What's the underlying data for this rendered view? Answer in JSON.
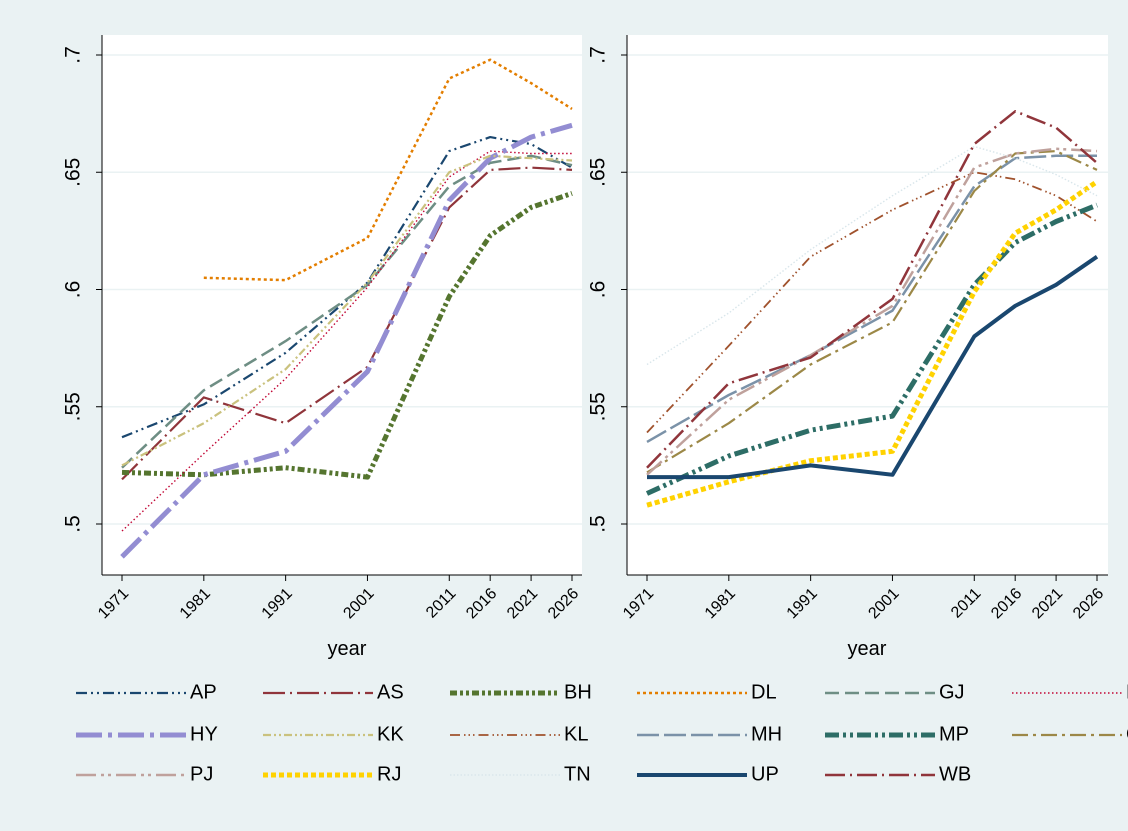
{
  "chart_data": [
    {
      "type": "line",
      "panel": "left",
      "xlabel": "year",
      "ylabel": "",
      "x": [
        1971,
        1981,
        1991,
        2001,
        2011,
        2016,
        2021,
        2026
      ],
      "x_ticks": [
        "1971",
        "1981",
        "1991",
        "2001",
        "2011",
        "2016",
        "2021",
        "2026"
      ],
      "ylim": [
        0.48,
        0.71
      ],
      "y_ticks": [
        0.5,
        0.55,
        0.6,
        0.65,
        0.7
      ],
      "y_tick_labels": [
        ".5",
        ".55",
        ".6",
        ".65",
        ".7"
      ],
      "grid": true,
      "series": [
        {
          "name": "AP",
          "values": [
            0.537,
            0.551,
            0.573,
            0.603,
            0.659,
            0.665,
            0.662,
            0.652
          ]
        },
        {
          "name": "AS",
          "values": [
            0.519,
            0.554,
            0.543,
            0.567,
            0.635,
            0.651,
            0.652,
            0.651
          ]
        },
        {
          "name": "BH",
          "values": [
            0.522,
            0.521,
            0.524,
            0.52,
            0.597,
            0.623,
            0.635,
            0.641
          ]
        },
        {
          "name": "DL",
          "values": [
            null,
            0.605,
            0.604,
            0.622,
            0.69,
            0.698,
            0.688,
            0.677
          ]
        },
        {
          "name": "GJ",
          "values": [
            0.524,
            0.557,
            0.578,
            0.602,
            0.644,
            0.654,
            0.657,
            0.653
          ]
        },
        {
          "name": "HP",
          "values": [
            0.497,
            0.53,
            0.562,
            0.601,
            0.648,
            0.659,
            0.658,
            0.658
          ]
        },
        {
          "name": "HY",
          "values": [
            0.486,
            0.521,
            0.531,
            0.565,
            0.638,
            0.656,
            0.665,
            0.67
          ]
        },
        {
          "name": "KK",
          "values": [
            0.525,
            0.543,
            0.566,
            0.603,
            0.65,
            0.657,
            0.656,
            0.655
          ]
        }
      ]
    },
    {
      "type": "line",
      "panel": "right",
      "xlabel": "year",
      "ylabel": "",
      "x": [
        1971,
        1981,
        1991,
        2001,
        2011,
        2016,
        2021,
        2026
      ],
      "x_ticks": [
        "1971",
        "1981",
        "1991",
        "2001",
        "2011",
        "2016",
        "2021",
        "2026"
      ],
      "ylim": [
        0.48,
        0.71
      ],
      "y_ticks": [
        0.5,
        0.55,
        0.6,
        0.65,
        0.7
      ],
      "y_tick_labels": [
        ".5",
        ".55",
        ".6",
        ".65",
        ".7"
      ],
      "grid": true,
      "series": [
        {
          "name": "KL",
          "values": [
            0.539,
            0.576,
            0.614,
            0.634,
            0.65,
            0.647,
            0.64,
            0.629
          ]
        },
        {
          "name": "MH",
          "values": [
            0.535,
            0.555,
            0.572,
            0.591,
            0.644,
            0.656,
            0.657,
            0.657
          ]
        },
        {
          "name": "MP",
          "values": [
            0.513,
            0.529,
            0.54,
            0.546,
            0.602,
            0.62,
            0.629,
            0.636
          ]
        },
        {
          "name": "OR",
          "values": [
            0.522,
            0.543,
            0.568,
            0.586,
            0.642,
            0.658,
            0.659,
            0.651
          ]
        },
        {
          "name": "PJ",
          "values": [
            0.521,
            0.553,
            0.572,
            0.593,
            0.652,
            0.658,
            0.66,
            0.659
          ]
        },
        {
          "name": "RJ",
          "values": [
            0.508,
            0.518,
            0.527,
            0.531,
            0.599,
            0.624,
            0.634,
            0.646
          ]
        },
        {
          "name": "TN",
          "values": [
            0.568,
            0.59,
            0.617,
            0.64,
            0.661,
            0.656,
            0.649,
            0.64
          ]
        },
        {
          "name": "UP",
          "values": [
            0.52,
            0.52,
            0.525,
            0.521,
            0.58,
            0.593,
            0.602,
            0.614
          ]
        },
        {
          "name": "WB",
          "values": [
            0.524,
            0.56,
            0.571,
            0.596,
            0.662,
            0.676,
            0.669,
            0.654
          ]
        }
      ]
    }
  ],
  "legend": {
    "placement": "bottom",
    "items": [
      {
        "name": "AP",
        "color": "#1a476f"
      },
      {
        "name": "AS",
        "color": "#90353b"
      },
      {
        "name": "BH",
        "color": "#55752f"
      },
      {
        "name": "DL",
        "color": "#e37e00"
      },
      {
        "name": "GJ",
        "color": "#6e8e84"
      },
      {
        "name": "HP",
        "color": "#c10534"
      },
      {
        "name": "HY",
        "color": "#938dd2"
      },
      {
        "name": "KK",
        "color": "#cac27e"
      },
      {
        "name": "KL",
        "color": "#a0522d"
      },
      {
        "name": "MH",
        "color": "#7b92a8"
      },
      {
        "name": "MP",
        "color": "#2d6d66"
      },
      {
        "name": "OR",
        "color": "#9c8847"
      },
      {
        "name": "PJ",
        "color": "#bfa19c"
      },
      {
        "name": "RJ",
        "color": "#ffd200"
      },
      {
        "name": "TN",
        "color": "#d9e6eb"
      },
      {
        "name": "UP",
        "color": "#1a476f"
      },
      {
        "name": "WB",
        "color": "#90353b"
      }
    ]
  }
}
